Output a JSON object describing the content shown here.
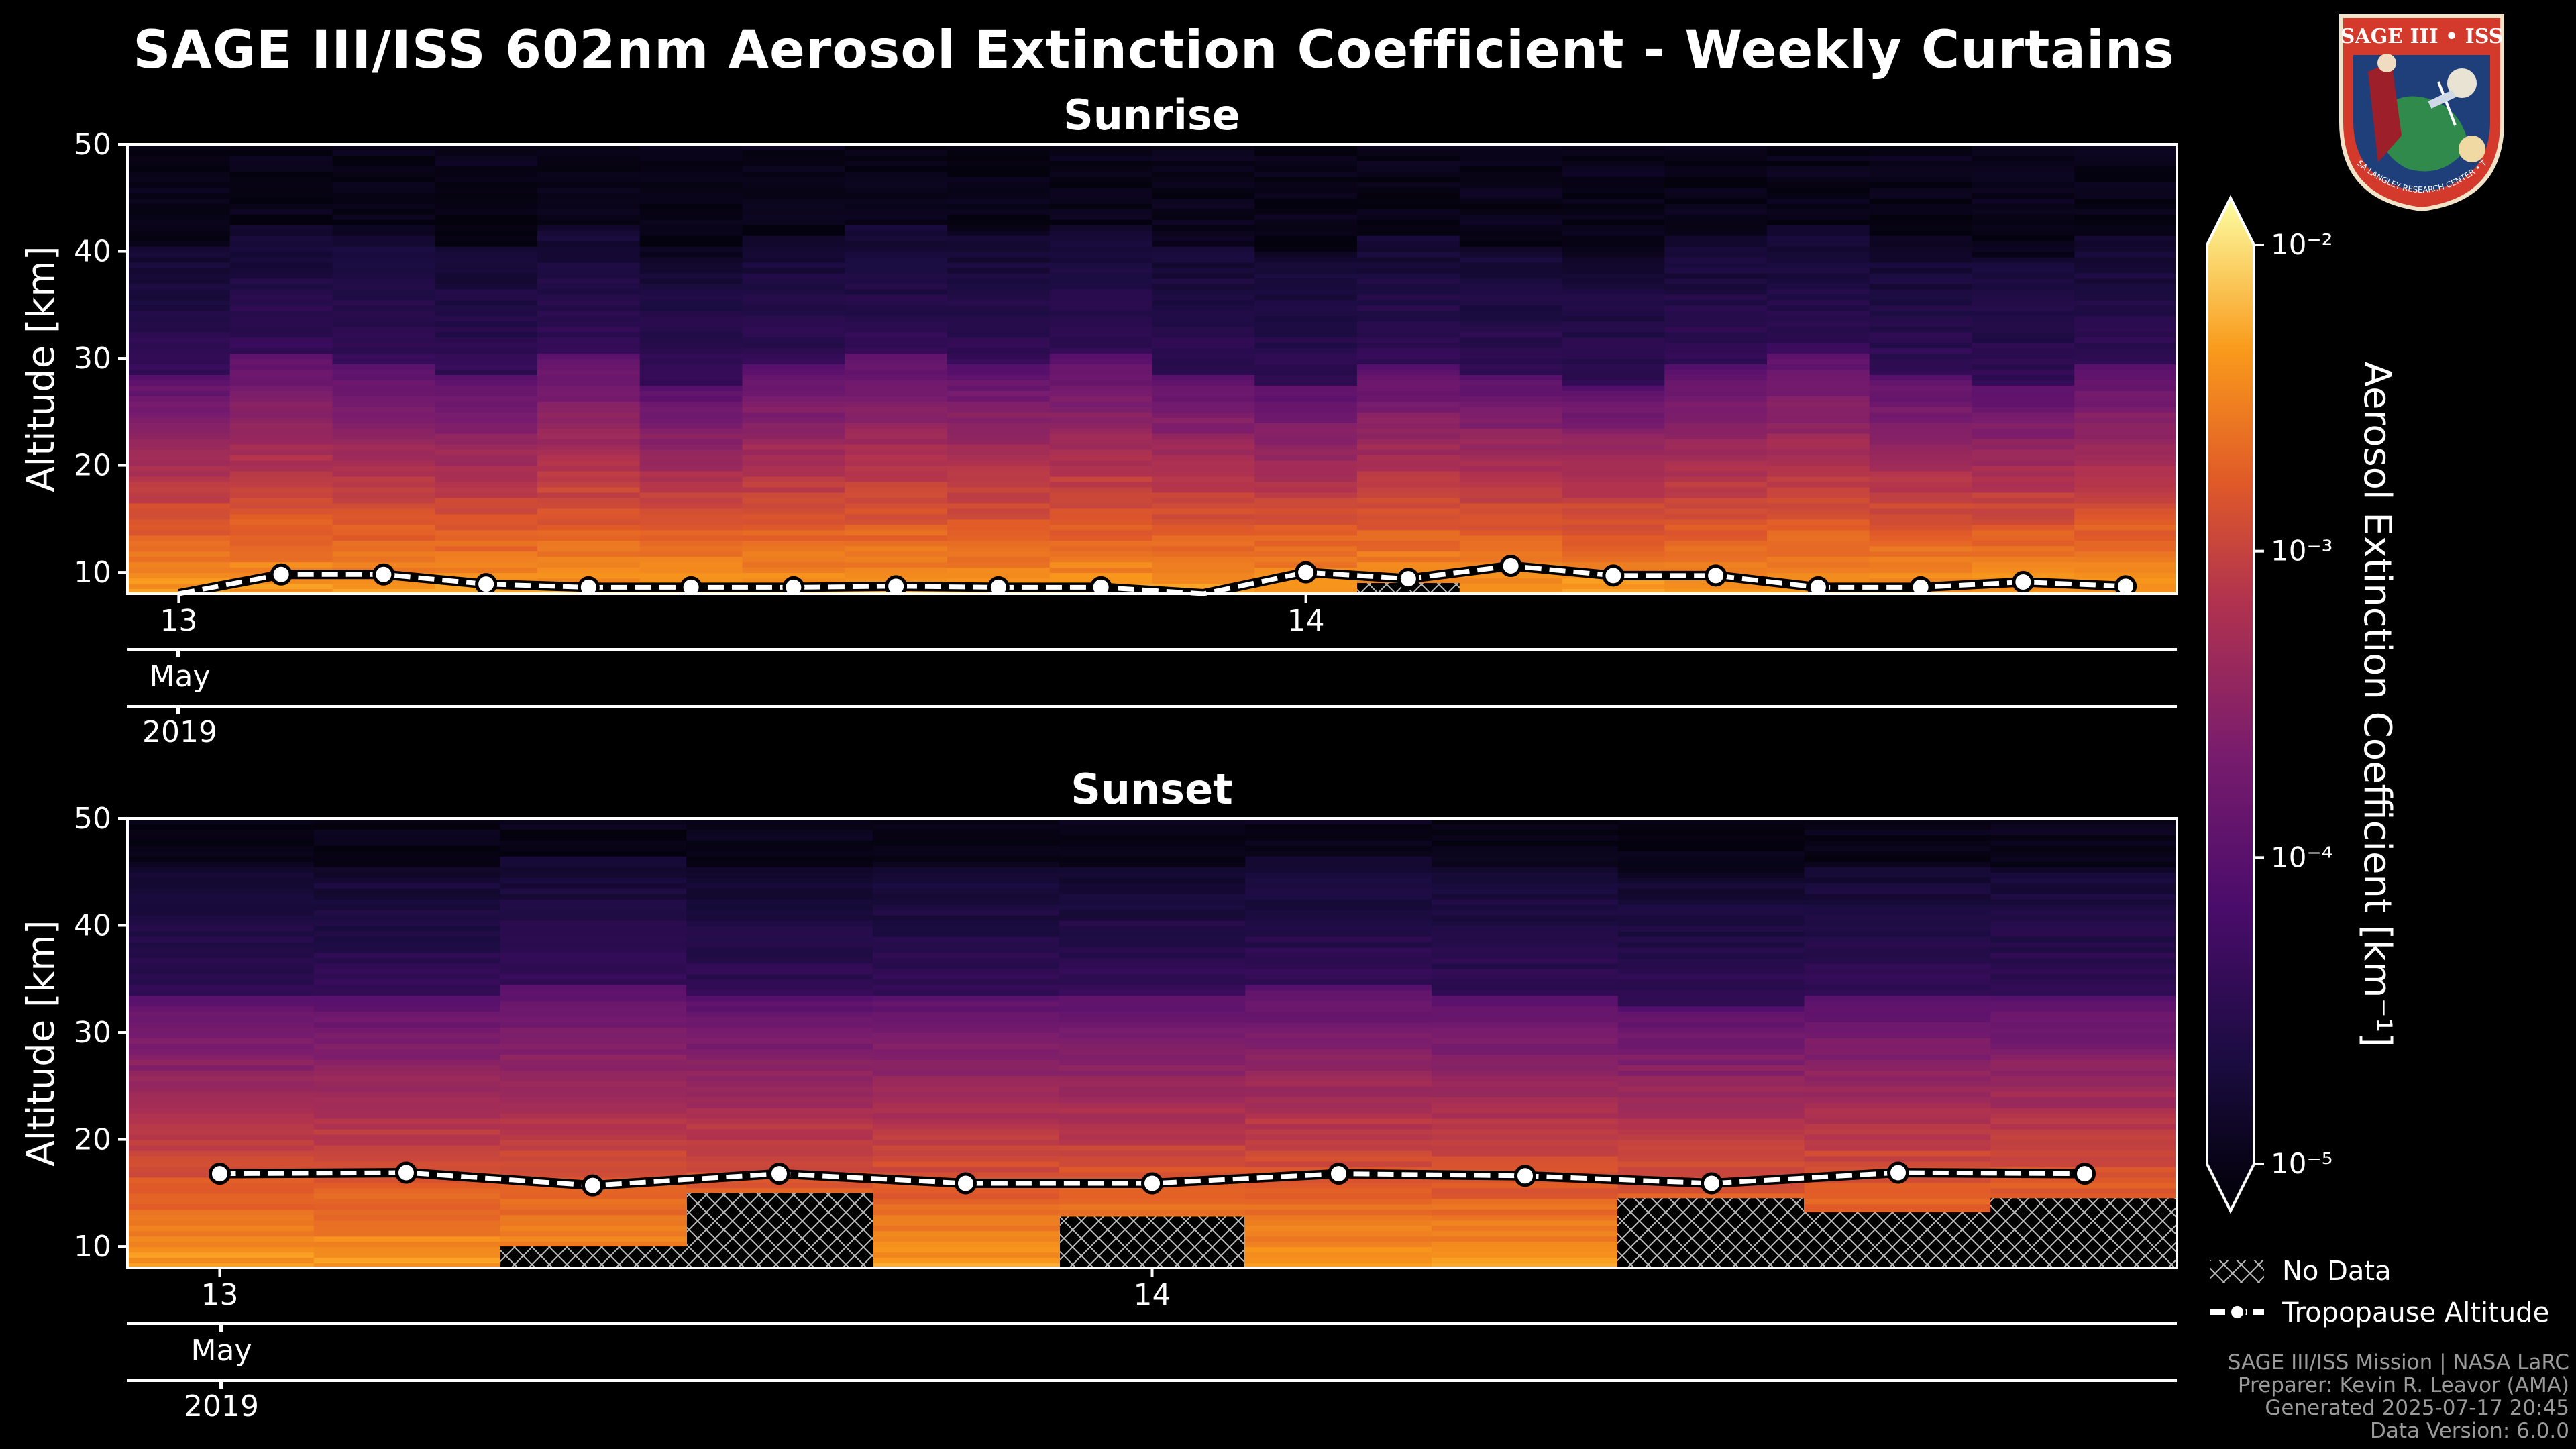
{
  "title": "SAGE III/ISS 602nm Aerosol Extinction Coefficient - Weekly Curtains",
  "colors": {
    "background": "#000000",
    "tropopause": "#ffffff",
    "hatch": "#bbbbbb"
  },
  "chart_data": [
    {
      "type": "heatmap",
      "subtitle": "Sunrise",
      "ylabel": "Altitude [km]",
      "ylim": [
        8,
        50
      ],
      "yticks": [
        10,
        20,
        30,
        40,
        50
      ],
      "x_major_ticks": [
        {
          "label": "13",
          "pos": 0.025
        },
        {
          "label": "14",
          "pos": 0.575
        }
      ],
      "x_month_label": "May",
      "x_year_label": "2019",
      "columns": 20,
      "column_top_altitudes": [
        28,
        30,
        29,
        28,
        30,
        27,
        29,
        30,
        29,
        30,
        28,
        27,
        29,
        28,
        27,
        29,
        30,
        28,
        27,
        29
      ],
      "tropopause": {
        "x": [
          0.025,
          0.075,
          0.125,
          0.175,
          0.225,
          0.275,
          0.325,
          0.375,
          0.425,
          0.475,
          0.525,
          0.575,
          0.625,
          0.675,
          0.725,
          0.775,
          0.825,
          0.875,
          0.925,
          0.975
        ],
        "altitude": [
          7.5,
          9.8,
          9.8,
          8.9,
          8.6,
          8.6,
          8.6,
          8.7,
          8.6,
          8.6,
          7.4,
          10.0,
          9.4,
          10.6,
          9.7,
          9.7,
          8.6,
          8.6,
          9.1,
          8.7
        ],
        "markers": [
          false,
          true,
          true,
          true,
          true,
          true,
          true,
          true,
          true,
          true,
          false,
          true,
          true,
          true,
          true,
          true,
          true,
          true,
          true,
          true
        ]
      },
      "no_data": [
        {
          "x0": 0.6,
          "x1": 0.65,
          "top": 9.0
        }
      ]
    },
    {
      "type": "heatmap",
      "subtitle": "Sunset",
      "ylabel": "Altitude [km]",
      "ylim": [
        8,
        50
      ],
      "yticks": [
        10,
        20,
        30,
        40,
        50
      ],
      "x_major_ticks": [
        {
          "label": "13",
          "pos": 0.045
        },
        {
          "label": "14",
          "pos": 0.5
        }
      ],
      "x_month_label": "May",
      "x_year_label": "2019",
      "columns": 11,
      "column_top_altitudes": [
        33,
        33,
        34,
        33,
        33,
        33,
        34,
        33,
        32,
        33,
        33
      ],
      "tropopause": {
        "x": [
          0.045,
          0.136,
          0.227,
          0.318,
          0.409,
          0.5,
          0.591,
          0.682,
          0.773,
          0.864,
          0.955
        ],
        "altitude": [
          16.8,
          16.9,
          15.7,
          16.8,
          15.9,
          15.9,
          16.8,
          16.6,
          15.9,
          16.9,
          16.8
        ],
        "markers": [
          true,
          true,
          true,
          true,
          true,
          true,
          true,
          true,
          true,
          true,
          true
        ]
      },
      "no_data": [
        {
          "x0": 0.182,
          "x1": 0.273,
          "top": 10.0
        },
        {
          "x0": 0.273,
          "x1": 0.364,
          "top": 15.0
        },
        {
          "x0": 0.455,
          "x1": 0.545,
          "top": 12.8
        },
        {
          "x0": 0.727,
          "x1": 0.818,
          "top": 14.5
        },
        {
          "x0": 0.818,
          "x1": 0.909,
          "top": 13.2
        },
        {
          "x0": 0.909,
          "x1": 1.0,
          "top": 14.5
        }
      ]
    }
  ],
  "colorbar": {
    "label": "Aerosol Extinction Coefficient [km⁻¹]",
    "scale": "log",
    "range_exp": [
      -5,
      -2
    ],
    "tick_labels": [
      "10⁻²",
      "10⁻³",
      "10⁻⁴",
      "10⁻⁵"
    ]
  },
  "legend": {
    "no_data": "No Data",
    "tropopause": "Tropopause Altitude"
  },
  "credits": {
    "line1": "SAGE III/ISS Mission | NASA LaRC",
    "line2": "Preparer: Kevin R. Leavor (AMA)",
    "line3": "Generated 2025-07-17 20:45",
    "line4": "Data Version: 6.0.0"
  },
  "logo": {
    "title": "SAGE III • ISS",
    "ring": "BALL • NASA LANGLEY RESEARCH CENTER • TAS-I • ESA"
  }
}
